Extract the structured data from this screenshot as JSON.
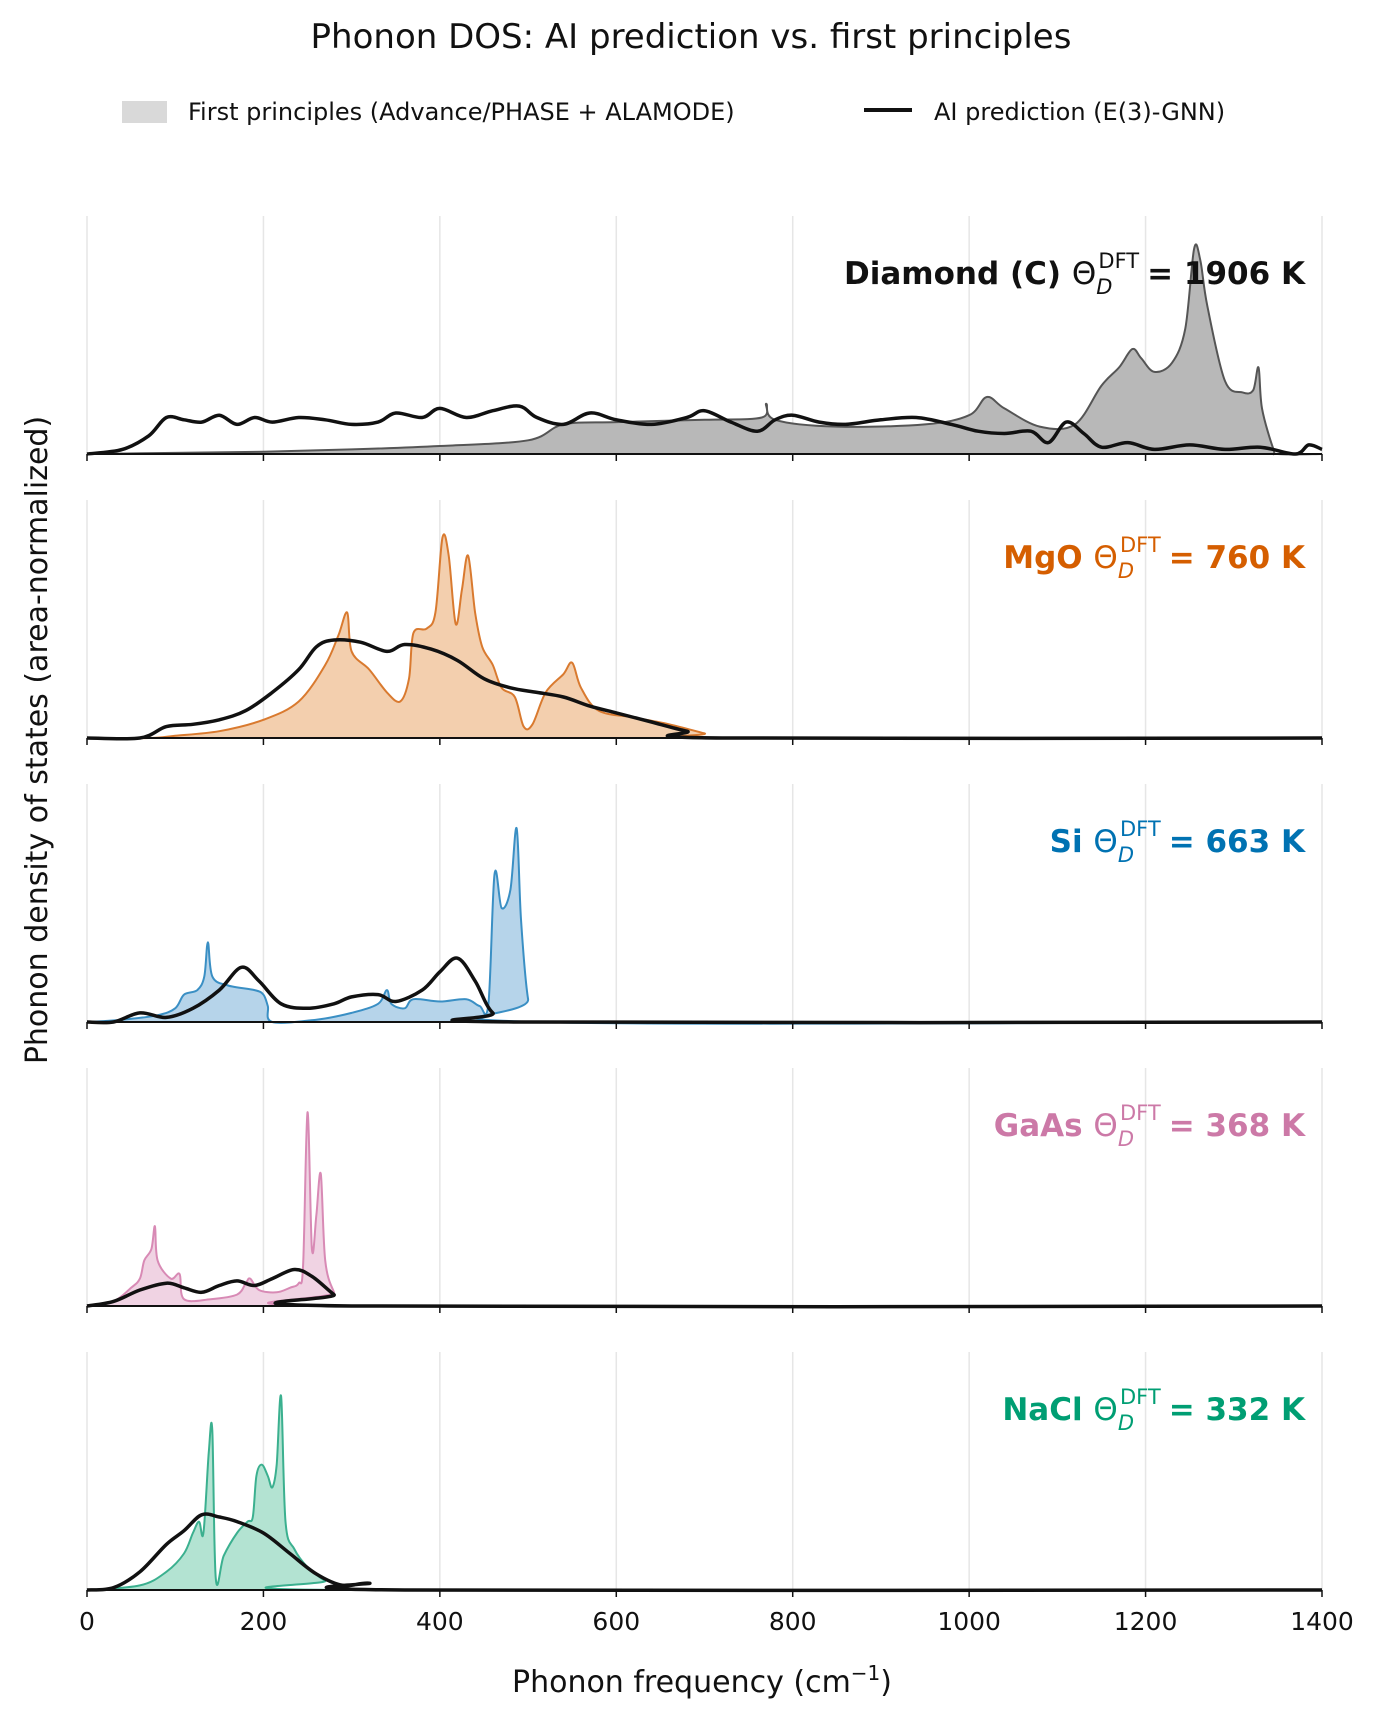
{
  "chart_data": {
    "type": "area",
    "title": "Phonon DOS: AI prediction vs. first principles",
    "xlabel": "Phonon frequency (cm⁻¹)",
    "ylabel": "Phonon density of states (area-normalized)",
    "xlim": [
      0,
      1400
    ],
    "xticks": [
      0,
      200,
      400,
      600,
      800,
      1000,
      1200,
      1400
    ],
    "grid": "vertical",
    "legend": {
      "placement": "top-center",
      "entries": [
        {
          "label": "First principles (Advance/PHASE + ALAMODE)",
          "style": "filled-area",
          "color": "#d9d9d9"
        },
        {
          "label": "AI prediction (E(3)-GNN)",
          "style": "line",
          "color": "#111111"
        }
      ]
    },
    "panels": [
      {
        "material": "Diamond (C)",
        "theta_text": "= 1906 K",
        "theta_symbol": "Θ",
        "theta_sub": "D",
        "theta_sup": "DFT",
        "color": "#555555",
        "fill": "#b8b8b8",
        "label_color": "#111111",
        "ymax": 1.0,
        "reference_dos": [
          [
            0,
            0
          ],
          [
            100,
            0.005
          ],
          [
            200,
            0.01
          ],
          [
            300,
            0.02
          ],
          [
            400,
            0.035
          ],
          [
            500,
            0.06
          ],
          [
            540,
            0.13
          ],
          [
            600,
            0.14
          ],
          [
            700,
            0.15
          ],
          [
            765,
            0.16
          ],
          [
            770,
            0.22
          ],
          [
            780,
            0.15
          ],
          [
            850,
            0.12
          ],
          [
            950,
            0.13
          ],
          [
            1000,
            0.17
          ],
          [
            1020,
            0.25
          ],
          [
            1040,
            0.2
          ],
          [
            1080,
            0.12
          ],
          [
            1120,
            0.13
          ],
          [
            1150,
            0.3
          ],
          [
            1170,
            0.38
          ],
          [
            1185,
            0.46
          ],
          [
            1195,
            0.42
          ],
          [
            1210,
            0.36
          ],
          [
            1230,
            0.4
          ],
          [
            1245,
            0.55
          ],
          [
            1255,
            0.9
          ],
          [
            1262,
            0.85
          ],
          [
            1270,
            0.65
          ],
          [
            1290,
            0.32
          ],
          [
            1310,
            0.27
          ],
          [
            1322,
            0.28
          ],
          [
            1328,
            0.38
          ],
          [
            1332,
            0.2
          ],
          [
            1345,
            0.02
          ],
          [
            1350,
            0
          ],
          [
            1400,
            0
          ]
        ],
        "ai_prediction": [
          [
            0,
            0
          ],
          [
            40,
            0.02
          ],
          [
            70,
            0.08
          ],
          [
            90,
            0.16
          ],
          [
            110,
            0.15
          ],
          [
            130,
            0.14
          ],
          [
            150,
            0.17
          ],
          [
            170,
            0.13
          ],
          [
            190,
            0.16
          ],
          [
            210,
            0.14
          ],
          [
            240,
            0.16
          ],
          [
            270,
            0.15
          ],
          [
            300,
            0.13
          ],
          [
            330,
            0.14
          ],
          [
            350,
            0.18
          ],
          [
            380,
            0.16
          ],
          [
            400,
            0.2
          ],
          [
            430,
            0.16
          ],
          [
            460,
            0.19
          ],
          [
            490,
            0.21
          ],
          [
            510,
            0.16
          ],
          [
            540,
            0.13
          ],
          [
            570,
            0.18
          ],
          [
            600,
            0.15
          ],
          [
            640,
            0.13
          ],
          [
            680,
            0.16
          ],
          [
            700,
            0.19
          ],
          [
            730,
            0.14
          ],
          [
            760,
            0.1
          ],
          [
            780,
            0.15
          ],
          [
            800,
            0.17
          ],
          [
            830,
            0.14
          ],
          [
            860,
            0.13
          ],
          [
            900,
            0.15
          ],
          [
            940,
            0.16
          ],
          [
            980,
            0.13
          ],
          [
            1010,
            0.1
          ],
          [
            1040,
            0.09
          ],
          [
            1070,
            0.1
          ],
          [
            1090,
            0.05
          ],
          [
            1110,
            0.14
          ],
          [
            1130,
            0.09
          ],
          [
            1150,
            0.03
          ],
          [
            1180,
            0.05
          ],
          [
            1210,
            0.02
          ],
          [
            1250,
            0.04
          ],
          [
            1290,
            0.02
          ],
          [
            1330,
            0.03
          ],
          [
            1370,
            0.0
          ],
          [
            1385,
            0.04
          ],
          [
            1400,
            0.02
          ]
        ]
      },
      {
        "material": "MgO",
        "theta_text": "= 760 K",
        "theta_symbol": "Θ",
        "theta_sub": "D",
        "theta_sup": "DFT",
        "color": "#d97a2f",
        "fill": "#f3cfae",
        "label_color": "#d55e00",
        "ymax": 1.0,
        "reference_dos": [
          [
            0,
            0
          ],
          [
            70,
            0
          ],
          [
            100,
            0.01
          ],
          [
            150,
            0.03
          ],
          [
            200,
            0.08
          ],
          [
            240,
            0.16
          ],
          [
            270,
            0.32
          ],
          [
            285,
            0.45
          ],
          [
            295,
            0.55
          ],
          [
            300,
            0.38
          ],
          [
            320,
            0.3
          ],
          [
            340,
            0.2
          ],
          [
            355,
            0.16
          ],
          [
            365,
            0.26
          ],
          [
            370,
            0.46
          ],
          [
            385,
            0.48
          ],
          [
            395,
            0.55
          ],
          [
            403,
            0.88
          ],
          [
            410,
            0.8
          ],
          [
            418,
            0.5
          ],
          [
            425,
            0.65
          ],
          [
            432,
            0.8
          ],
          [
            440,
            0.55
          ],
          [
            448,
            0.4
          ],
          [
            460,
            0.32
          ],
          [
            470,
            0.22
          ],
          [
            485,
            0.18
          ],
          [
            495,
            0.05
          ],
          [
            505,
            0.06
          ],
          [
            520,
            0.2
          ],
          [
            540,
            0.28
          ],
          [
            550,
            0.33
          ],
          [
            560,
            0.22
          ],
          [
            580,
            0.12
          ],
          [
            620,
            0.09
          ],
          [
            660,
            0.06
          ],
          [
            700,
            0.02
          ],
          [
            720,
            0
          ],
          [
            1400,
            0
          ]
        ],
        "ai_prediction": [
          [
            0,
            0
          ],
          [
            60,
            0.0
          ],
          [
            90,
            0.05
          ],
          [
            120,
            0.06
          ],
          [
            150,
            0.08
          ],
          [
            180,
            0.12
          ],
          [
            210,
            0.2
          ],
          [
            240,
            0.3
          ],
          [
            260,
            0.4
          ],
          [
            280,
            0.43
          ],
          [
            310,
            0.42
          ],
          [
            340,
            0.38
          ],
          [
            360,
            0.41
          ],
          [
            390,
            0.39
          ],
          [
            420,
            0.34
          ],
          [
            450,
            0.26
          ],
          [
            480,
            0.22
          ],
          [
            510,
            0.2
          ],
          [
            540,
            0.18
          ],
          [
            570,
            0.14
          ],
          [
            600,
            0.11
          ],
          [
            640,
            0.07
          ],
          [
            680,
            0.03
          ],
          [
            720,
            0.0
          ],
          [
            1400,
            0
          ]
        ]
      },
      {
        "material": "Si",
        "theta_text": "= 663 K",
        "theta_symbol": "Θ",
        "theta_sub": "D",
        "theta_sup": "DFT",
        "color": "#3a8fc4",
        "fill": "#b6d4ea",
        "label_color": "#0072b2",
        "ymax": 1.0,
        "reference_dos": [
          [
            0,
            0
          ],
          [
            40,
            0.01
          ],
          [
            80,
            0.03
          ],
          [
            100,
            0.06
          ],
          [
            110,
            0.12
          ],
          [
            125,
            0.14
          ],
          [
            133,
            0.2
          ],
          [
            137,
            0.35
          ],
          [
            142,
            0.2
          ],
          [
            160,
            0.16
          ],
          [
            190,
            0.14
          ],
          [
            200,
            0.12
          ],
          [
            205,
            0.07
          ],
          [
            210,
            0.0
          ],
          [
            260,
            0.01
          ],
          [
            300,
            0.04
          ],
          [
            330,
            0.08
          ],
          [
            340,
            0.14
          ],
          [
            345,
            0.08
          ],
          [
            360,
            0.06
          ],
          [
            370,
            0.1
          ],
          [
            400,
            0.09
          ],
          [
            430,
            0.1
          ],
          [
            445,
            0.07
          ],
          [
            455,
            0.08
          ],
          [
            462,
            0.65
          ],
          [
            470,
            0.5
          ],
          [
            480,
            0.58
          ],
          [
            487,
            0.85
          ],
          [
            492,
            0.45
          ],
          [
            500,
            0.1
          ],
          [
            510,
            0.0
          ],
          [
            1400,
            0
          ]
        ],
        "ai_prediction": [
          [
            0,
            0
          ],
          [
            30,
            0.0
          ],
          [
            60,
            0.04
          ],
          [
            90,
            0.02
          ],
          [
            120,
            0.06
          ],
          [
            150,
            0.14
          ],
          [
            175,
            0.24
          ],
          [
            195,
            0.18
          ],
          [
            220,
            0.08
          ],
          [
            250,
            0.06
          ],
          [
            280,
            0.08
          ],
          [
            300,
            0.11
          ],
          [
            330,
            0.12
          ],
          [
            350,
            0.09
          ],
          [
            380,
            0.14
          ],
          [
            400,
            0.22
          ],
          [
            420,
            0.28
          ],
          [
            440,
            0.18
          ],
          [
            460,
            0.04
          ],
          [
            490,
            0.0
          ],
          [
            1400,
            0
          ]
        ]
      },
      {
        "material": "GaAs",
        "theta_text": "= 368 K",
        "theta_symbol": "Θ",
        "theta_sub": "D",
        "theta_sup": "DFT",
        "color": "#d88ab5",
        "fill": "#f0d3e3",
        "label_color": "#cc79a7",
        "ymax": 1.0,
        "reference_dos": [
          [
            0,
            0
          ],
          [
            30,
            0.02
          ],
          [
            50,
            0.08
          ],
          [
            60,
            0.12
          ],
          [
            65,
            0.2
          ],
          [
            73,
            0.25
          ],
          [
            77,
            0.35
          ],
          [
            80,
            0.2
          ],
          [
            95,
            0.12
          ],
          [
            105,
            0.14
          ],
          [
            110,
            0.03
          ],
          [
            140,
            0.03
          ],
          [
            170,
            0.05
          ],
          [
            180,
            0.1
          ],
          [
            185,
            0.12
          ],
          [
            195,
            0.07
          ],
          [
            215,
            0.06
          ],
          [
            230,
            0.08
          ],
          [
            240,
            0.1
          ],
          [
            245,
            0.18
          ],
          [
            250,
            0.85
          ],
          [
            255,
            0.25
          ],
          [
            260,
            0.4
          ],
          [
            265,
            0.58
          ],
          [
            270,
            0.2
          ],
          [
            280,
            0.06
          ],
          [
            290,
            0.0
          ],
          [
            1400,
            0
          ]
        ],
        "ai_prediction": [
          [
            0,
            0
          ],
          [
            30,
            0.02
          ],
          [
            60,
            0.07
          ],
          [
            90,
            0.1
          ],
          [
            110,
            0.08
          ],
          [
            130,
            0.06
          ],
          [
            150,
            0.09
          ],
          [
            170,
            0.11
          ],
          [
            190,
            0.09
          ],
          [
            210,
            0.12
          ],
          [
            235,
            0.16
          ],
          [
            255,
            0.13
          ],
          [
            280,
            0.05
          ],
          [
            300,
            0.0
          ],
          [
            1400,
            0
          ]
        ]
      },
      {
        "material": "NaCl",
        "theta_text": "= 332 K",
        "theta_symbol": "Θ",
        "theta_sub": "D",
        "theta_sup": "DFT",
        "color": "#3bb08f",
        "fill": "#b3e3d2",
        "label_color": "#009e73",
        "ymax": 1.0,
        "reference_dos": [
          [
            0,
            0
          ],
          [
            60,
            0.02
          ],
          [
            90,
            0.08
          ],
          [
            110,
            0.16
          ],
          [
            120,
            0.25
          ],
          [
            127,
            0.3
          ],
          [
            132,
            0.25
          ],
          [
            138,
            0.6
          ],
          [
            142,
            0.7
          ],
          [
            146,
            0.05
          ],
          [
            155,
            0.15
          ],
          [
            170,
            0.25
          ],
          [
            182,
            0.3
          ],
          [
            188,
            0.32
          ],
          [
            192,
            0.5
          ],
          [
            198,
            0.55
          ],
          [
            205,
            0.5
          ],
          [
            210,
            0.45
          ],
          [
            215,
            0.55
          ],
          [
            220,
            0.85
          ],
          [
            225,
            0.3
          ],
          [
            235,
            0.18
          ],
          [
            250,
            0.1
          ],
          [
            270,
            0.04
          ],
          [
            290,
            0.0
          ],
          [
            1400,
            0
          ]
        ],
        "ai_prediction": [
          [
            0,
            0
          ],
          [
            30,
            0.01
          ],
          [
            60,
            0.08
          ],
          [
            90,
            0.2
          ],
          [
            110,
            0.26
          ],
          [
            130,
            0.33
          ],
          [
            150,
            0.32
          ],
          [
            170,
            0.3
          ],
          [
            200,
            0.25
          ],
          [
            230,
            0.16
          ],
          [
            260,
            0.07
          ],
          [
            290,
            0.02
          ],
          [
            320,
            0.03
          ],
          [
            360,
            0.0
          ],
          [
            1400,
            0
          ]
        ]
      }
    ]
  }
}
